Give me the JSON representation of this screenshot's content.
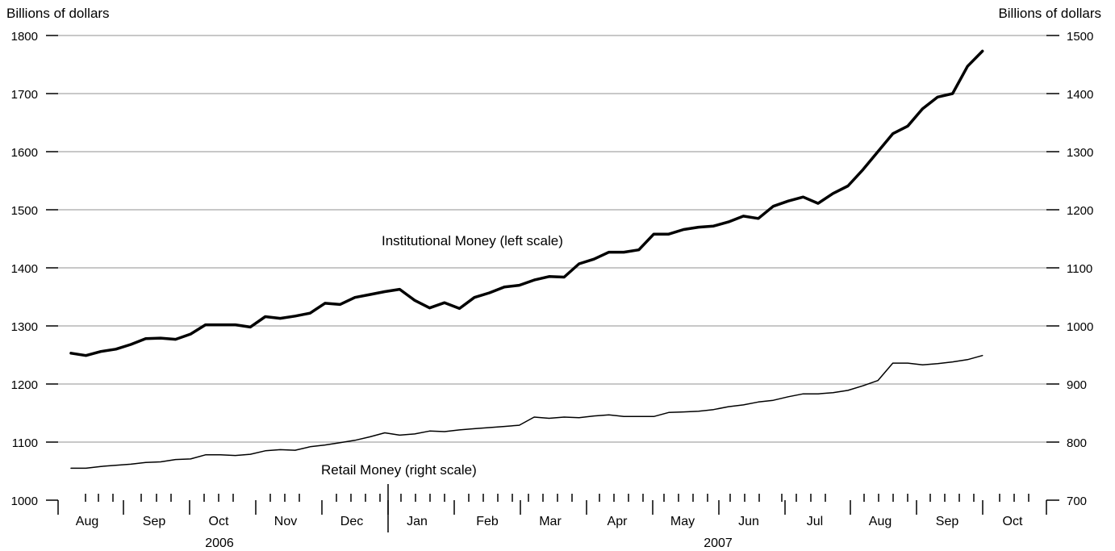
{
  "chart_data": {
    "type": "line",
    "left_axis": {
      "label": "Billions of dollars",
      "min": 1000,
      "max": 1800,
      "ticks": [
        1000,
        1100,
        1200,
        1300,
        1400,
        1500,
        1600,
        1700,
        1800
      ]
    },
    "right_axis": {
      "label": "Billions of dollars",
      "min": 700,
      "max": 1500,
      "ticks": [
        700,
        800,
        900,
        1000,
        1100,
        1200,
        1300,
        1400,
        1500
      ]
    },
    "grid": true,
    "months": [
      "Aug",
      "Sep",
      "Oct",
      "Nov",
      "Dec",
      "Jan",
      "Feb",
      "Mar",
      "Apr",
      "May",
      "Jun",
      "Jul",
      "Aug",
      "Sep",
      "Oct"
    ],
    "years": [
      "2006",
      "2007"
    ],
    "series": [
      {
        "name": "Institutional Money (left scale)",
        "axis": "left",
        "values": [
          1253,
          1249,
          1256,
          1260,
          1268,
          1278,
          1279,
          1277,
          1286,
          1302,
          1302,
          1302,
          1298,
          1316,
          1313,
          1317,
          1322,
          1339,
          1337,
          1349,
          1354,
          1359,
          1363,
          1344,
          1331,
          1340,
          1330,
          1349,
          1357,
          1367,
          1370,
          1379,
          1385,
          1384,
          1407,
          1415,
          1427,
          1427,
          1431,
          1458,
          1458,
          1466,
          1470,
          1472,
          1479,
          1489,
          1485,
          1506,
          1515,
          1522,
          1511,
          1528,
          1541,
          1569,
          1600,
          1631,
          1644,
          1674,
          1694,
          1700,
          1747,
          1773
        ]
      },
      {
        "name": "Retail Money (right scale)",
        "axis": "right",
        "values": [
          755,
          755,
          758,
          760,
          762,
          765,
          766,
          770,
          771,
          778,
          778,
          777,
          779,
          785,
          787,
          786,
          792,
          795,
          799,
          803,
          809,
          816,
          812,
          814,
          819,
          818,
          821,
          823,
          825,
          827,
          829,
          843,
          841,
          843,
          842,
          845,
          847,
          844,
          844,
          844,
          851,
          852,
          853,
          856,
          861,
          864,
          869,
          872,
          878,
          883,
          883,
          885,
          889,
          897,
          906,
          936,
          936,
          933,
          935,
          938,
          942,
          949
        ]
      }
    ]
  }
}
